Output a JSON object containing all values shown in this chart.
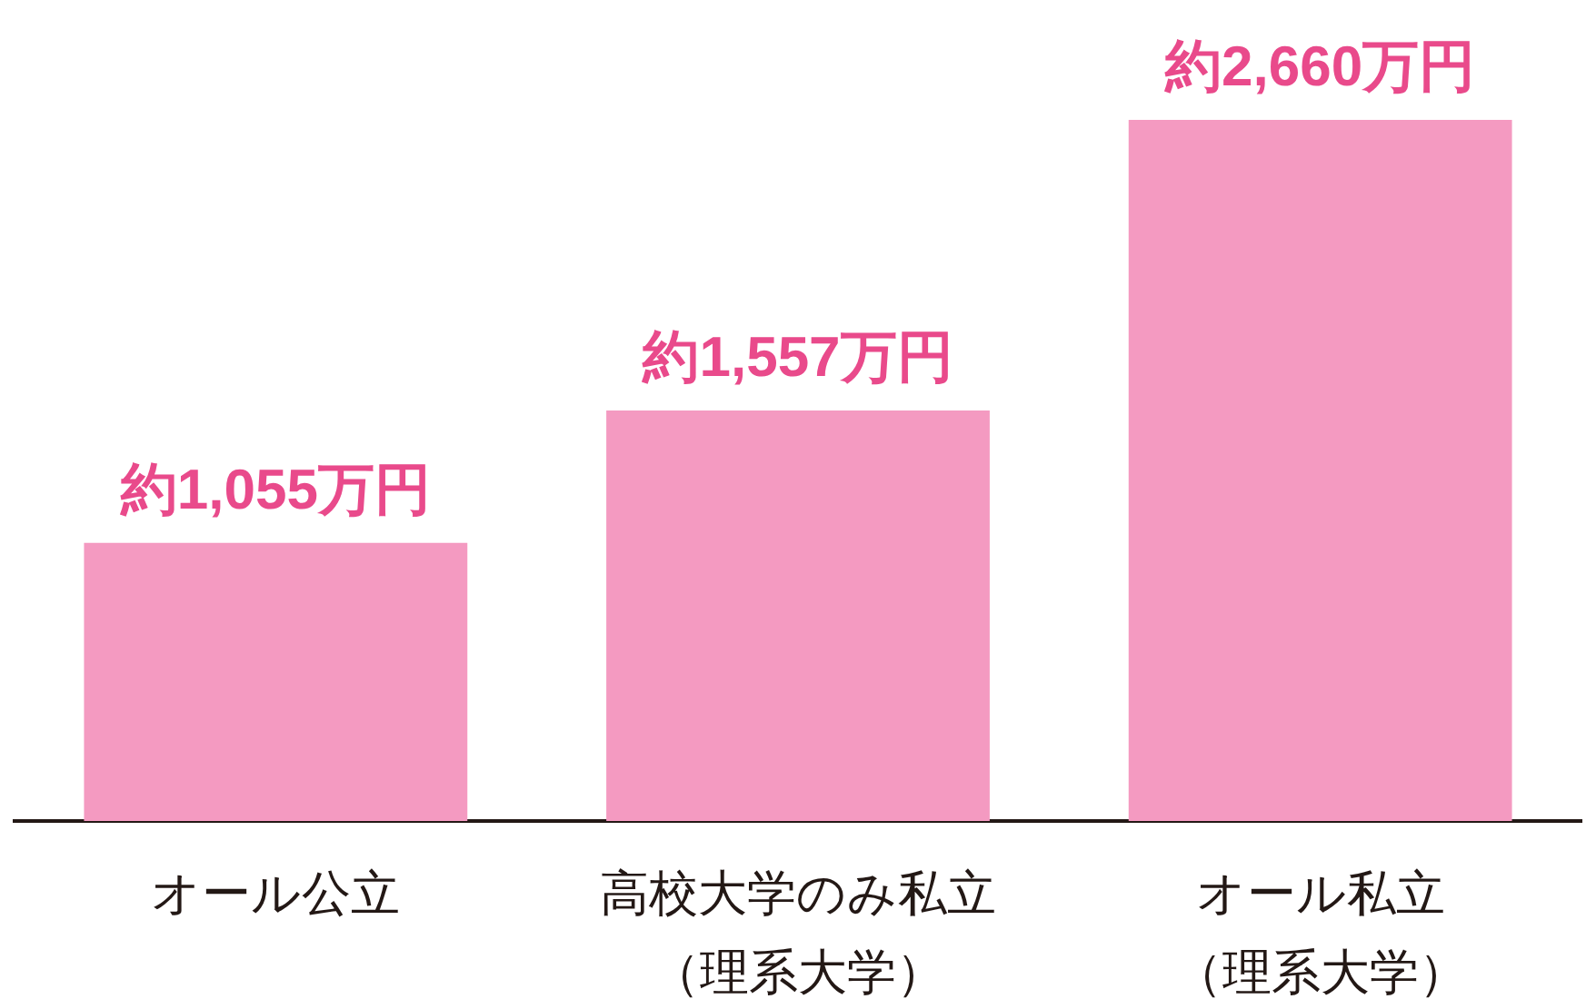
{
  "chart_data": {
    "type": "bar",
    "categories": [
      "オール公立",
      "高校大学のみ私立（理系大学）",
      "オール私立（理系大学）"
    ],
    "values": [
      1055,
      1557,
      2660
    ],
    "color": "#f49ac1",
    "value_labels": [
      "約1,055万円",
      "約1,557万円",
      "約2,660万円"
    ],
    "tick_labels": "x"
  }
}
